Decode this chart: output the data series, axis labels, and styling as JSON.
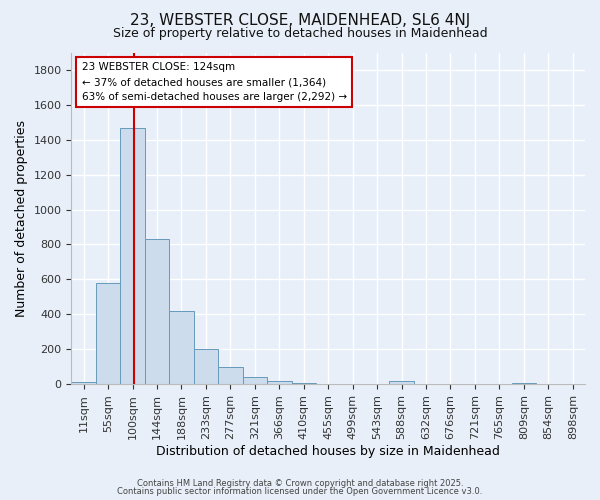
{
  "title_line1": "23, WEBSTER CLOSE, MAIDENHEAD, SL6 4NJ",
  "title_line2": "Size of property relative to detached houses in Maidenhead",
  "xlabel": "Distribution of detached houses by size in Maidenhead",
  "ylabel": "Number of detached properties",
  "bar_labels": [
    "11sqm",
    "55sqm",
    "100sqm",
    "144sqm",
    "188sqm",
    "233sqm",
    "277sqm",
    "321sqm",
    "366sqm",
    "410sqm",
    "455sqm",
    "499sqm",
    "543sqm",
    "588sqm",
    "632sqm",
    "676sqm",
    "721sqm",
    "765sqm",
    "809sqm",
    "854sqm",
    "898sqm"
  ],
  "bar_values": [
    10,
    580,
    1470,
    830,
    420,
    200,
    100,
    38,
    15,
    5,
    0,
    0,
    0,
    15,
    0,
    0,
    0,
    0,
    5,
    0,
    0
  ],
  "bar_color": "#ccdcec",
  "bar_edge_color": "#6699bb",
  "vline_color": "#cc0000",
  "vline_x_index": 2.54,
  "ylim": [
    0,
    1900
  ],
  "yticks": [
    0,
    200,
    400,
    600,
    800,
    1000,
    1200,
    1400,
    1600,
    1800
  ],
  "annotation_title": "23 WEBSTER CLOSE: 124sqm",
  "annotation_line2": "← 37% of detached houses are smaller (1,364)",
  "annotation_line3": "63% of semi-detached houses are larger (2,292) →",
  "annotation_box_color": "#ffffff",
  "annotation_box_edge": "#cc0000",
  "footnote1": "Contains HM Land Registry data © Crown copyright and database right 2025.",
  "footnote2": "Contains public sector information licensed under the Open Government Licence v3.0.",
  "background_color": "#e8eff8",
  "grid_color": "#d0dce8",
  "fig_width": 6.0,
  "fig_height": 5.0
}
